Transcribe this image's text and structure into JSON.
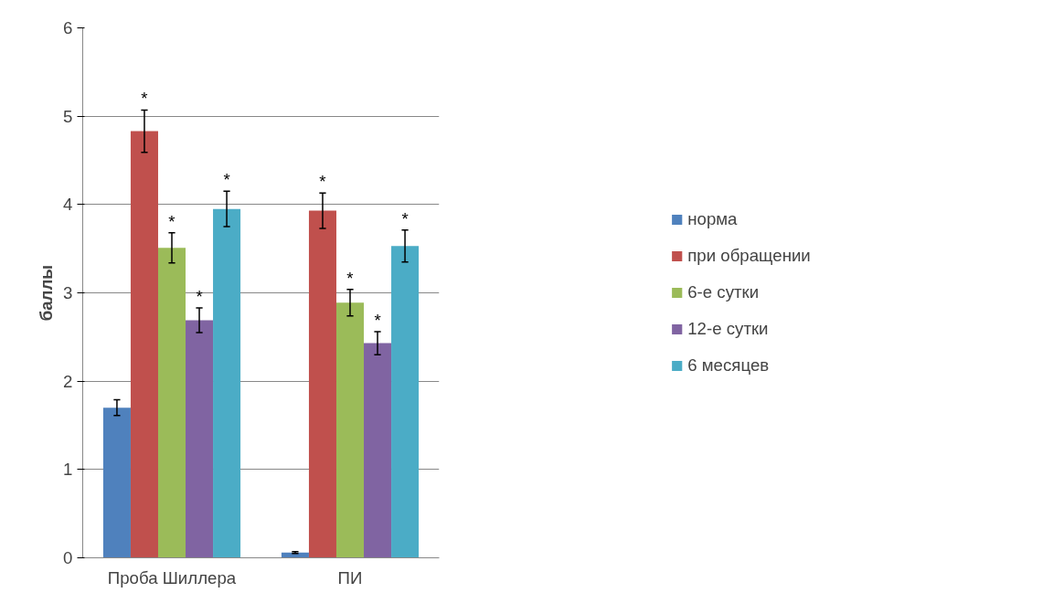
{
  "chart_data": {
    "type": "bar",
    "ylabel": "баллы",
    "categories": [
      "Проба Шиллера",
      "ПИ"
    ],
    "series": [
      {
        "name": "норма",
        "color": "#4f81bd",
        "values": [
          1.7,
          0.06
        ],
        "errors": [
          0.09,
          0.01
        ]
      },
      {
        "name": "при обращении",
        "color": "#c0504d",
        "values": [
          4.83,
          3.93
        ],
        "errors": [
          0.24,
          0.2
        ],
        "value_labels": [
          "*",
          "*"
        ]
      },
      {
        "name": "6-е сутки",
        "color": "#9bbb59",
        "values": [
          3.51,
          2.89
        ],
        "errors": [
          0.17,
          0.15
        ],
        "value_labels": [
          "*",
          "*"
        ]
      },
      {
        "name": "12-е сутки",
        "color": "#8064a2",
        "values": [
          2.69,
          2.43
        ],
        "errors": [
          0.14,
          0.13
        ],
        "value_labels": [
          "*",
          "*"
        ]
      },
      {
        "name": "6 месяцев",
        "color": "#4bacc6",
        "values": [
          3.95,
          3.53
        ],
        "errors": [
          0.2,
          0.18
        ],
        "value_labels": [
          "*",
          "*"
        ]
      }
    ],
    "ylim": [
      0,
      6
    ],
    "yticks": [
      0,
      1,
      2,
      3,
      4,
      5,
      6
    ],
    "grid": "y",
    "legend": "right"
  }
}
